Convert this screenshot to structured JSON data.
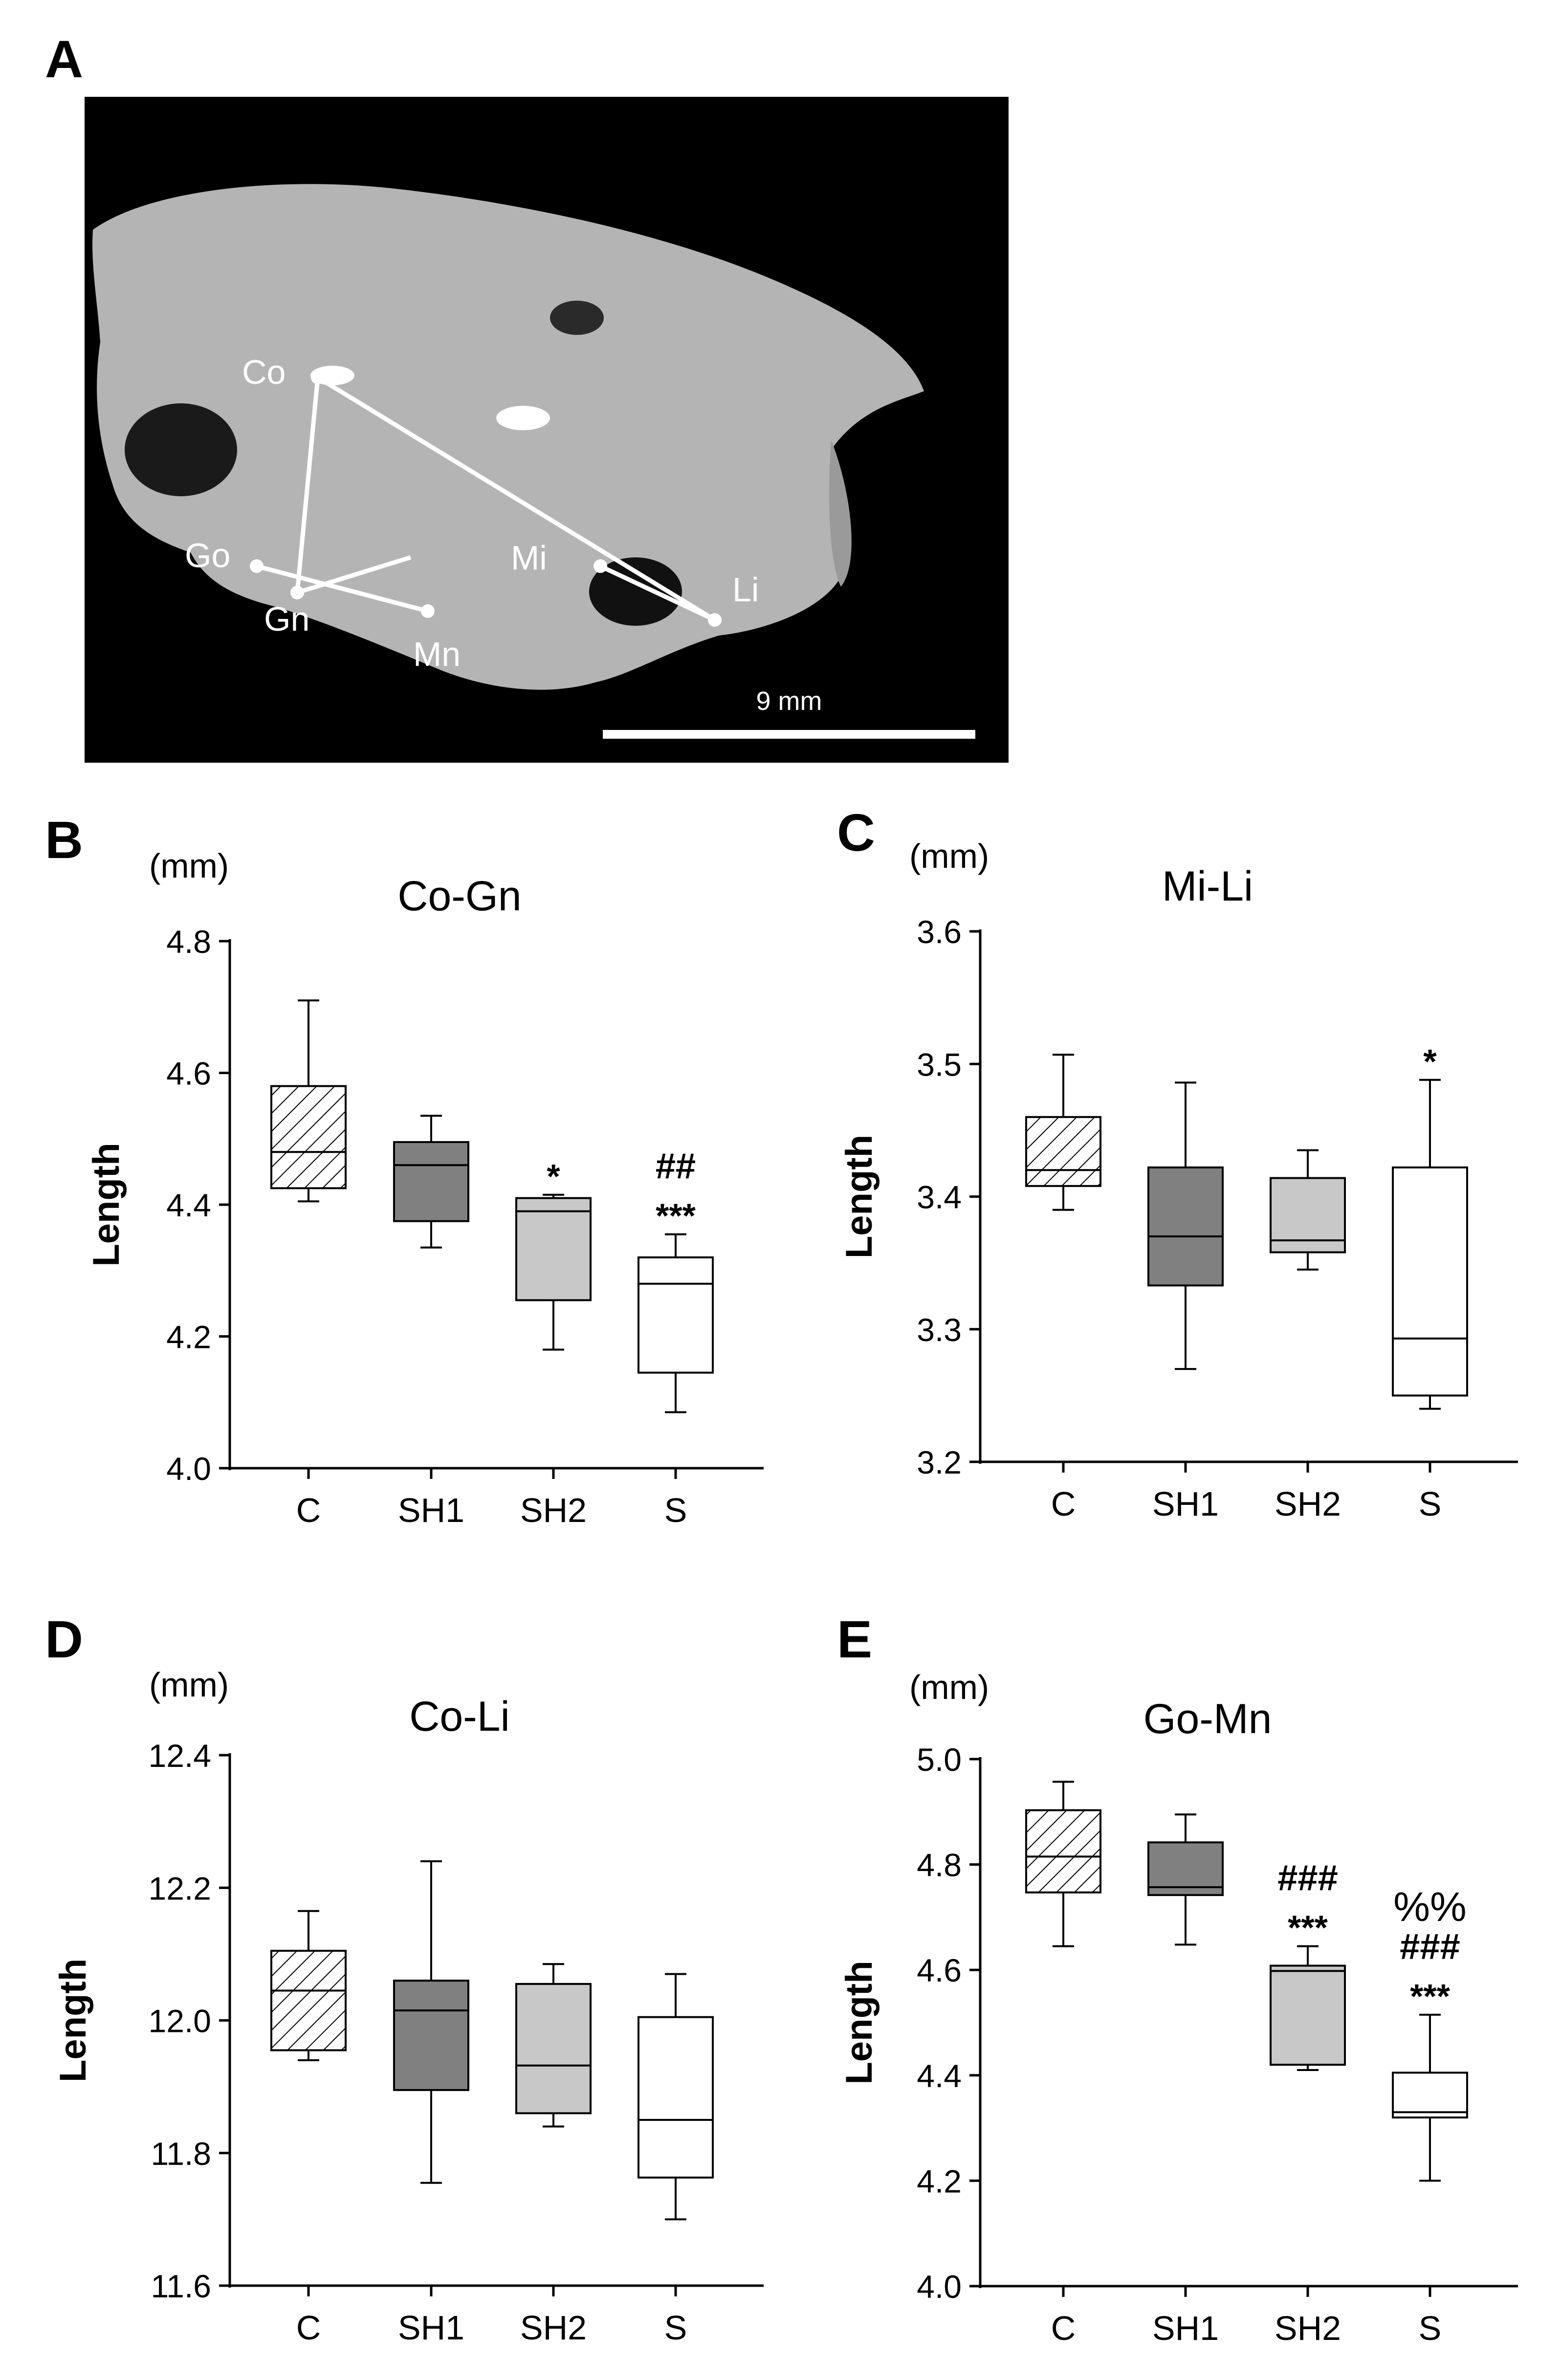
{
  "panels": {
    "A": "A",
    "B": "B",
    "C": "C",
    "D": "D",
    "E": "E"
  },
  "photo": {
    "landmarks": [
      "Co",
      "Go",
      "Gn",
      "Mn",
      "Mi",
      "Li"
    ],
    "scale_bar": "9 mm"
  },
  "colors": {
    "C": "#ffffff",
    "SH1": "#808080",
    "SH2": "#c8c8c8",
    "S": "#ffffff",
    "background_photo": "#000000",
    "bone": "#b4b4b4",
    "stroke": "#000000"
  },
  "chart_data": [
    {
      "panel": "B",
      "type": "box",
      "title": "Co-Gn",
      "unit": "(mm)",
      "ylabel": "Length",
      "categories": [
        "C",
        "SH1",
        "SH2",
        "S"
      ],
      "ylim": [
        4.0,
        4.8
      ],
      "yticks": [
        "4.0",
        "4.2",
        "4.4",
        "4.6",
        "4.8"
      ],
      "boxes": [
        {
          "group": "C",
          "min": 4.405,
          "q1": 4.425,
          "median": 4.48,
          "q3": 4.58,
          "max": 4.71,
          "fill": "hatch",
          "annotations": []
        },
        {
          "group": "SH1",
          "min": 4.335,
          "q1": 4.375,
          "median": 4.46,
          "q3": 4.495,
          "max": 4.535,
          "fill": "#808080",
          "annotations": []
        },
        {
          "group": "SH2",
          "min": 4.18,
          "q1": 4.255,
          "median": 4.39,
          "q3": 4.41,
          "max": 4.415,
          "fill": "#c8c8c8",
          "annotations": [
            "*"
          ]
        },
        {
          "group": "S",
          "min": 4.085,
          "q1": 4.145,
          "median": 4.28,
          "q3": 4.32,
          "max": 4.355,
          "fill": "#ffffff",
          "annotations": [
            "##",
            "***"
          ]
        }
      ]
    },
    {
      "panel": "C",
      "type": "box",
      "title": "Mi-Li",
      "unit": "(mm)",
      "ylabel": "Length",
      "categories": [
        "C",
        "SH1",
        "SH2",
        "S"
      ],
      "ylim": [
        3.2,
        3.6
      ],
      "yticks": [
        "3.2",
        "3.3",
        "3.4",
        "3.5",
        "3.6"
      ],
      "boxes": [
        {
          "group": "C",
          "min": 3.39,
          "q1": 3.408,
          "median": 3.42,
          "q3": 3.46,
          "max": 3.507,
          "fill": "hatch",
          "annotations": []
        },
        {
          "group": "SH1",
          "min": 3.27,
          "q1": 3.333,
          "median": 3.37,
          "q3": 3.422,
          "max": 3.486,
          "fill": "#808080",
          "annotations": []
        },
        {
          "group": "SH2",
          "min": 3.345,
          "q1": 3.358,
          "median": 3.367,
          "q3": 3.414,
          "max": 3.435,
          "fill": "#c8c8c8",
          "annotations": []
        },
        {
          "group": "S",
          "min": 3.24,
          "q1": 3.25,
          "median": 3.293,
          "q3": 3.422,
          "max": 3.488,
          "fill": "#ffffff",
          "annotations": [
            "*"
          ]
        }
      ]
    },
    {
      "panel": "D",
      "type": "box",
      "title": "Co-Li",
      "unit": "(mm)",
      "ylabel": "Length",
      "categories": [
        "C",
        "SH1",
        "SH2",
        "S"
      ],
      "ylim": [
        11.6,
        12.4
      ],
      "yticks": [
        "11.6",
        "11.8",
        "12.0",
        "12.2",
        "12.4"
      ],
      "boxes": [
        {
          "group": "C",
          "min": 11.94,
          "q1": 11.955,
          "median": 12.045,
          "q3": 12.105,
          "max": 12.165,
          "fill": "hatch",
          "annotations": []
        },
        {
          "group": "SH1",
          "min": 11.755,
          "q1": 11.895,
          "median": 12.015,
          "q3": 12.06,
          "max": 12.24,
          "fill": "#808080",
          "annotations": []
        },
        {
          "group": "SH2",
          "min": 11.84,
          "q1": 11.86,
          "median": 11.932,
          "q3": 12.055,
          "max": 12.085,
          "fill": "#c8c8c8",
          "annotations": []
        },
        {
          "group": "S",
          "min": 11.7,
          "q1": 11.763,
          "median": 11.85,
          "q3": 12.005,
          "max": 12.07,
          "fill": "#ffffff",
          "annotations": []
        }
      ]
    },
    {
      "panel": "E",
      "type": "box",
      "title": "Go-Mn",
      "unit": "(mm)",
      "ylabel": "Length",
      "categories": [
        "C",
        "SH1",
        "SH2",
        "S"
      ],
      "ylim": [
        4.0,
        5.0
      ],
      "yticks": [
        "4.0",
        "4.2",
        "4.4",
        "4.6",
        "4.8",
        "5.0"
      ],
      "boxes": [
        {
          "group": "C",
          "min": 4.645,
          "q1": 4.747,
          "median": 4.815,
          "q3": 4.903,
          "max": 4.957,
          "fill": "hatch",
          "annotations": []
        },
        {
          "group": "SH1",
          "min": 4.648,
          "q1": 4.742,
          "median": 4.757,
          "q3": 4.842,
          "max": 4.895,
          "fill": "#808080",
          "annotations": []
        },
        {
          "group": "SH2",
          "min": 4.41,
          "q1": 4.42,
          "median": 4.598,
          "q3": 4.608,
          "max": 4.645,
          "fill": "#c8c8c8",
          "annotations": [
            "###",
            "***"
          ]
        },
        {
          "group": "S",
          "min": 4.2,
          "q1": 4.32,
          "median": 4.33,
          "q3": 4.405,
          "max": 4.515,
          "fill": "#ffffff",
          "annotations": [
            "%%",
            "###",
            "***"
          ]
        }
      ]
    }
  ]
}
